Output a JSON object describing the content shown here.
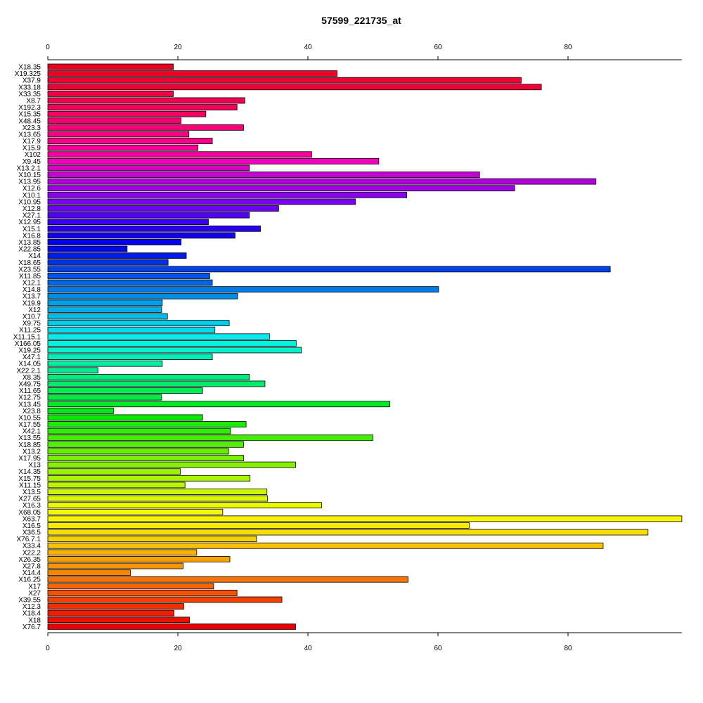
{
  "chart_data": {
    "type": "bar",
    "orientation": "horizontal",
    "title": "57599_221735_at",
    "xlabel": "",
    "ylabel": "",
    "xlim": [
      0,
      97.5
    ],
    "x_ticks": [
      0,
      20,
      40,
      60,
      80
    ],
    "grid": false,
    "categories": [
      "X18.35",
      "X19.325",
      "X37.9",
      "X33.18",
      "X33.35",
      "X8.7",
      "X192.3",
      "X15.35",
      "X48.45",
      "X23.3",
      "X13.65",
      "X17.9",
      "X15.9",
      "X102",
      "X9.45",
      "X13.2.1",
      "X10.15",
      "X13.95",
      "X12.6",
      "X10.1",
      "X10.95",
      "X12.8",
      "X27.1",
      "X12.95",
      "X15.1",
      "X16.8",
      "X13.85",
      "X22.85",
      "X14",
      "X18.65",
      "X23.55",
      "X11.85",
      "X12.1",
      "X14.8",
      "X13.7",
      "X19.9",
      "X12",
      "X10.7",
      "X9.75",
      "X11.25",
      "X11.15.1",
      "X166.05",
      "X19.25",
      "X47.1",
      "X14.05",
      "X22.2.1",
      "X8.35",
      "X49.75",
      "X11.65",
      "X12.75",
      "X13.45",
      "X23.8",
      "X10.55",
      "X17.55",
      "X42.1",
      "X13.55",
      "X18.85",
      "X13.2",
      "X17.95",
      "X13",
      "X14.35",
      "X15.75",
      "X11.15",
      "X13.5",
      "X27.65",
      "X16.3",
      "X68.05",
      "X63.7",
      "X16.5",
      "X36.5",
      "X76.7.1",
      "X33.4",
      "X22.2",
      "X26.35",
      "X27.8",
      "X14.4",
      "X16.25",
      "X17",
      "X27",
      "X39.55",
      "X12.3",
      "X18.4",
      "X18",
      "X76.7"
    ],
    "values": [
      19.3,
      44.5,
      72.8,
      75.9,
      19.3,
      30.3,
      29.1,
      24.3,
      20.5,
      30.1,
      21.7,
      25.3,
      23.1,
      40.6,
      50.9,
      31.0,
      66.4,
      84.3,
      71.8,
      55.2,
      47.3,
      35.5,
      31.0,
      24.7,
      32.7,
      28.8,
      20.5,
      12.2,
      21.3,
      18.5,
      86.5,
      24.9,
      25.3,
      60.1,
      29.2,
      17.6,
      17.5,
      18.4,
      27.9,
      25.7,
      34.1,
      38.2,
      39.0,
      25.3,
      17.6,
      7.7,
      31.0,
      33.4,
      23.8,
      17.5,
      52.6,
      10.1,
      23.8,
      30.5,
      28.1,
      50.0,
      30.1,
      27.8,
      30.1,
      38.1,
      20.4,
      31.1,
      21.1,
      33.7,
      33.8,
      42.1,
      26.9,
      97.5,
      64.8,
      92.3,
      32.1,
      85.4,
      22.9,
      28.0,
      20.8,
      12.7,
      55.4,
      25.5,
      29.1,
      36.0,
      20.9,
      19.4,
      21.8,
      38.1
    ],
    "colors": [
      "#e8001e",
      "#ec0028",
      "#ef0032",
      "#ef003b",
      "#f10045",
      "#f2004f",
      "#f40059",
      "#f50063",
      "#f5006d",
      "#f70077",
      "#f70081",
      "#f8008b",
      "#f80095",
      "#f800a0",
      "#f000ba",
      "#db00c5",
      "#c200d1",
      "#b000dc",
      "#a000e6",
      "#8c00ef",
      "#7b00f2",
      "#6a00f8",
      "#5100f6",
      "#3a00f4",
      "#2600f0",
      "#1500ec",
      "#0500e8",
      "#0009e8",
      "#001ce8",
      "#002fe8",
      "#0042e6",
      "#0054e4",
      "#0067e4",
      "#007ae4",
      "#008be6",
      "#009de8",
      "#00ace8",
      "#00bde8",
      "#00ceea",
      "#00deee",
      "#00eef2",
      "#00f2e0",
      "#00f0cc",
      "#00eeb9",
      "#00eea6",
      "#00ec93",
      "#00eb80",
      "#00eb6b",
      "#00ea56",
      "#00ea40",
      "#00ea2a",
      "#00eb16",
      "#05ec00",
      "#1aec00",
      "#2fee00",
      "#43ef00",
      "#55f000",
      "#66f000",
      "#77f200",
      "#88f200",
      "#99f400",
      "#aaf400",
      "#bbf400",
      "#ccf600",
      "#dcf600",
      "#eaf800",
      "#f4f800",
      "#f8f400",
      "#f8ea00",
      "#f8de00",
      "#f8d200",
      "#f8c400",
      "#f8b400",
      "#f8a400",
      "#f89400",
      "#f88400",
      "#f87400",
      "#f86400",
      "#f65200",
      "#f44000",
      "#f02e00",
      "#ee1e00",
      "#ec0e00",
      "#e80005"
    ]
  }
}
